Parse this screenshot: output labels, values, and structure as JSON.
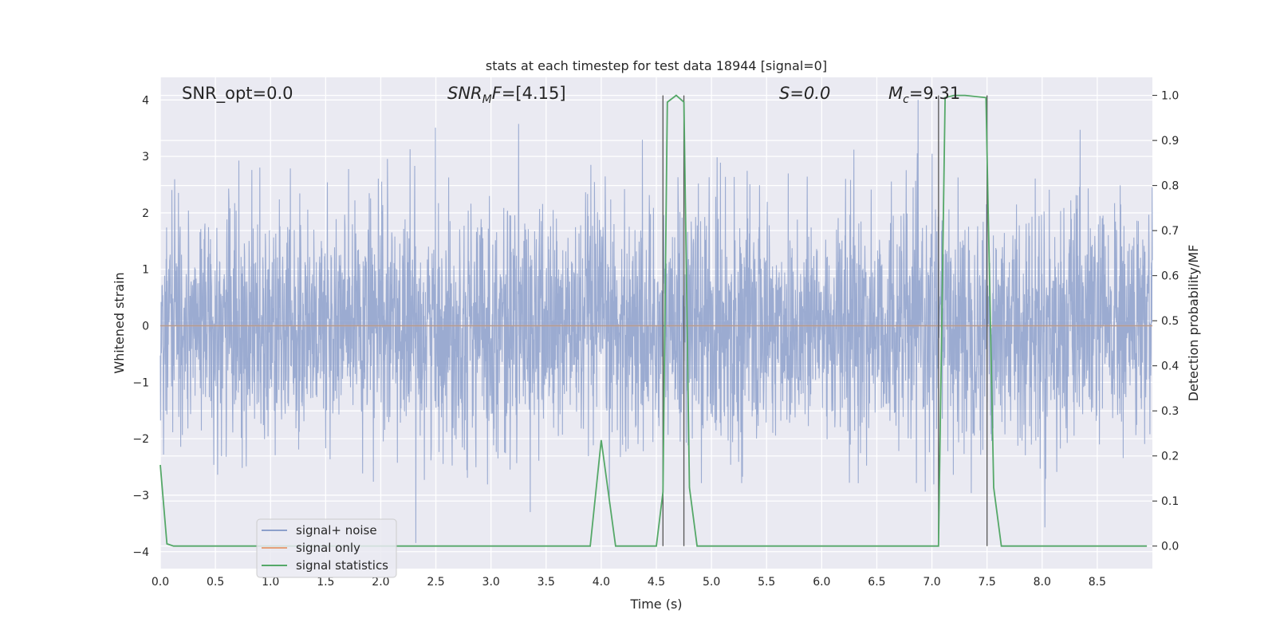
{
  "chart_data": {
    "type": "line",
    "title": "stats at each timestep for test data 18944 [signal=0]",
    "xlabel": "Time (s)",
    "ylabel_left": "Whitened strain",
    "ylabel_right": "Detection probability/MF",
    "xlim": [
      0.0,
      9.0
    ],
    "ylim_left": [
      -4.3,
      4.4
    ],
    "ylim_right": [
      -0.05,
      1.04
    ],
    "xticks": [
      0.0,
      0.5,
      1.0,
      1.5,
      2.0,
      2.5,
      3.0,
      3.5,
      4.0,
      4.5,
      5.0,
      5.5,
      6.0,
      6.5,
      7.0,
      7.5,
      8.0,
      8.5
    ],
    "xtick_labels": [
      "0.0",
      "0.5",
      "1.0",
      "1.5",
      "2.0",
      "2.5",
      "3.0",
      "3.5",
      "4.0",
      "4.5",
      "5.0",
      "5.5",
      "6.0",
      "6.5",
      "7.0",
      "7.5",
      "8.0",
      "8.5"
    ],
    "yticks_left": [
      -4,
      -3,
      -2,
      -1,
      0,
      1,
      2,
      3,
      4
    ],
    "ytick_labels_left": [
      "−4",
      "−3",
      "−2",
      "−1",
      "0",
      "1",
      "2",
      "3",
      "4"
    ],
    "yticks_right": [
      0.0,
      0.1,
      0.2,
      0.3,
      0.4,
      0.5,
      0.6,
      0.7,
      0.8,
      0.9,
      1.0
    ],
    "ytick_labels_right": [
      "0.0",
      "0.1",
      "0.2",
      "0.3",
      "0.4",
      "0.5",
      "0.6",
      "0.7",
      "0.8",
      "0.9",
      "1.0"
    ],
    "grid": true,
    "legend_position": "lower-left",
    "annotations": [
      {
        "text": "SNR_opt=0.0",
        "x": 0.2,
        "y": 4.15
      },
      {
        "text": "SNR_MF=[4.15]",
        "x": 2.6,
        "y": 4.15
      },
      {
        "text": "S=0.0",
        "x": 5.6,
        "y": 4.15
      },
      {
        "text": "M_c=9.31",
        "x": 6.6,
        "y": 4.15
      }
    ],
    "vertical_lines": [
      4.56,
      4.75,
      7.06,
      7.5
    ],
    "series": [
      {
        "name": "signal+ noise",
        "axis": "left",
        "color": "#8da0cb",
        "kind": "noise",
        "amplitude_range": [
          -3.9,
          4.0
        ]
      },
      {
        "name": "signal only",
        "axis": "left",
        "color": "#e5a07a",
        "x": [
          0.0,
          9.0
        ],
        "y": [
          0.0,
          0.0
        ]
      },
      {
        "name": "signal statistics",
        "axis": "right",
        "color": "#55a868",
        "x": [
          0.0,
          0.06,
          0.12,
          0.5,
          1.0,
          2.0,
          3.0,
          3.5,
          3.9,
          4.0,
          4.13,
          4.3,
          4.5,
          4.56,
          4.6,
          4.68,
          4.75,
          4.8,
          4.87,
          5.0,
          6.0,
          7.0,
          7.06,
          7.12,
          7.2,
          7.3,
          7.49,
          7.56,
          7.63,
          7.7,
          8.0,
          8.5,
          8.95
        ],
        "y": [
          0.18,
          0.005,
          0.0,
          0.0,
          0.0,
          0.0,
          0.0,
          0.0,
          0.0,
          0.235,
          0.0,
          0.0,
          0.0,
          0.12,
          0.985,
          1.0,
          0.985,
          0.13,
          0.0,
          0.0,
          0.0,
          0.0,
          0.0,
          0.995,
          1.0,
          1.0,
          0.995,
          0.13,
          0.0,
          0.0,
          0.0,
          0.0,
          0.0
        ]
      }
    ]
  }
}
